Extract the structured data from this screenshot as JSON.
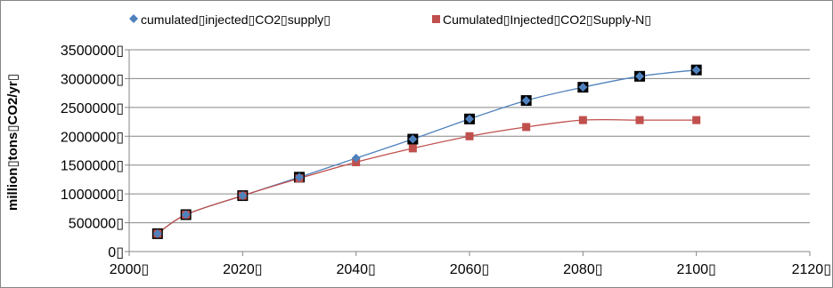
{
  "chart_data": {
    "type": "scatter",
    "title": "",
    "xlabel": "",
    "ylabel": "million▯tons▯CO2/yr▯",
    "xlim": [
      2000,
      2120
    ],
    "ylim": [
      0,
      3500000
    ],
    "x_ticks": [
      2000,
      2020,
      2040,
      2060,
      2080,
      2100,
      2120
    ],
    "y_ticks": [
      0,
      500000,
      1000000,
      1500000,
      2000000,
      2500000,
      3000000,
      3500000
    ],
    "x_tick_labels": [
      "2000▯",
      "2020▯",
      "2040▯",
      "2060▯",
      "2080▯",
      "2100▯",
      "2120▯"
    ],
    "y_tick_labels": [
      "0▯",
      "500000▯",
      "1000000▯",
      "1500000▯",
      "2000000▯",
      "2500000▯",
      "3000000▯",
      "3500000▯"
    ],
    "grid": "horizontal",
    "legend_position": "top",
    "series": [
      {
        "name": "cumulated▯injected▯CO2▯supply▯",
        "color": "#4f81bd",
        "marker": "diamond",
        "x": [
          2005,
          2010,
          2020,
          2030,
          2040,
          2050,
          2060,
          2070,
          2080,
          2090,
          2100
        ],
        "y": [
          310000,
          640000,
          970000,
          1290000,
          1620000,
          1950000,
          2300000,
          2620000,
          2850000,
          3040000,
          3150000
        ]
      },
      {
        "name": "Cumulated▯Injected▯CO2▯Supply-N▯",
        "color": "#c0504d",
        "marker": "square",
        "x": [
          2005,
          2010,
          2020,
          2030,
          2040,
          2050,
          2060,
          2070,
          2080,
          2090,
          2100
        ],
        "y": [
          310000,
          640000,
          970000,
          1270000,
          1550000,
          1790000,
          2000000,
          2160000,
          2280000,
          2280000,
          2280000
        ]
      },
      {
        "name": "",
        "color": "#000000",
        "marker": "square-outline",
        "x": [
          2005,
          2010,
          2020,
          2030,
          2050,
          2060,
          2070,
          2080,
          2090,
          2100
        ],
        "y": [
          310000,
          640000,
          970000,
          1290000,
          1950000,
          2300000,
          2620000,
          2850000,
          3040000,
          3150000
        ]
      }
    ]
  }
}
